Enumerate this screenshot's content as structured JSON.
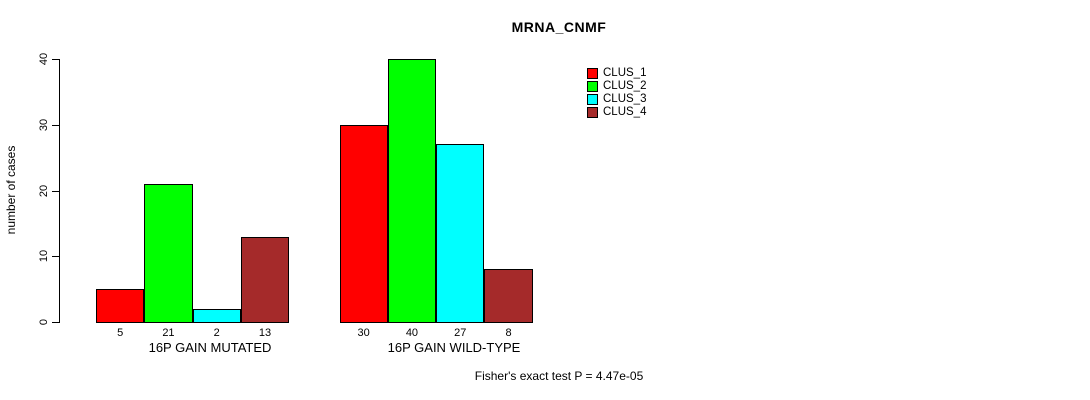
{
  "chart_data": {
    "type": "bar",
    "title": "MRNA_CNMF",
    "ylabel": "number of cases",
    "xlabel": "",
    "ylim": [
      0,
      40
    ],
    "yticks": [
      0,
      10,
      20,
      30,
      40
    ],
    "categories": [
      "16P GAIN MUTATED",
      "16P GAIN WILD-TYPE"
    ],
    "series": [
      {
        "name": "CLUS_1",
        "color": "#ff0000",
        "values": [
          5,
          30
        ]
      },
      {
        "name": "CLUS_2",
        "color": "#00ff00",
        "values": [
          21,
          40
        ]
      },
      {
        "name": "CLUS_3",
        "color": "#00ffff",
        "values": [
          2,
          27
        ]
      },
      {
        "name": "CLUS_4",
        "color": "#a52a2a",
        "values": [
          13,
          8
        ]
      }
    ],
    "bar_value_labels": [
      [
        5,
        21,
        2,
        13
      ],
      [
        30,
        40,
        27,
        8
      ]
    ],
    "legend_position": "top-right",
    "legend_entries": [
      "CLUS_1",
      "CLUS_2",
      "CLUS_3",
      "CLUS_4"
    ],
    "annotation": "Fisher's exact test P = 4.47e-05",
    "grid": false,
    "axis_color": "#000000",
    "background": "#ffffff"
  }
}
